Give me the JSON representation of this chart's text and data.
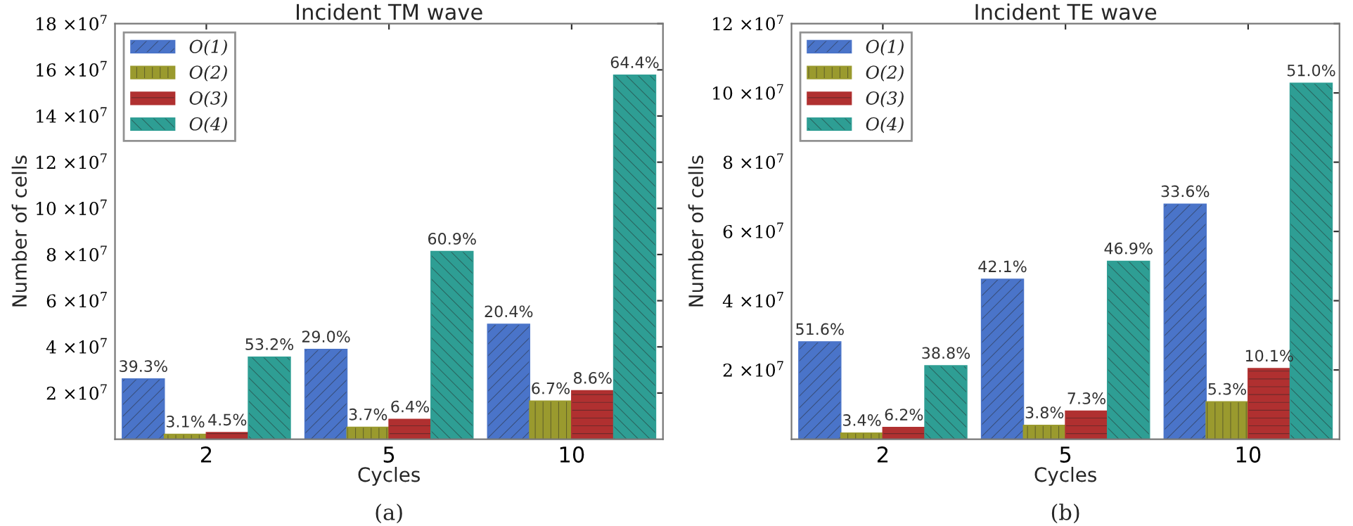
{
  "chart_data": [
    {
      "type": "bar",
      "title": "Incident TM wave",
      "xlabel": "Cycles",
      "ylabel": "Number of cells",
      "categories": [
        "2",
        "5",
        "10"
      ],
      "series": [
        {
          "name": "O(1)",
          "color": "#4a74c9",
          "values": [
            26100000,
            38900000,
            49800000
          ]
        },
        {
          "name": "O(2)",
          "color": "#9a9a2e",
          "values": [
            2100000,
            5200000,
            16500000
          ]
        },
        {
          "name": "O(3)",
          "color": "#b03030",
          "values": [
            2900000,
            8600000,
            21000000
          ]
        },
        {
          "name": "O(4)",
          "color": "#2e9e94",
          "values": [
            35600000,
            81300000,
            157700000
          ]
        }
      ],
      "ylim": [
        0,
        180000000
      ],
      "yticks": [
        {
          "value": 20000000,
          "label": "2 ×10$^{7}$"
        },
        {
          "value": 40000000,
          "label": "4 ×10$^{7}$"
        },
        {
          "value": 60000000,
          "label": "6 ×10$^{7}$"
        },
        {
          "value": 80000000,
          "label": "8 ×10$^{7}$"
        },
        {
          "value": 100000000,
          "label": "10 ×10$^{7}$"
        },
        {
          "value": 120000000,
          "label": "12 ×10$^{7}$"
        },
        {
          "value": 140000000,
          "label": "14 ×10$^{7}$"
        },
        {
          "value": 160000000,
          "label": "16 ×10$^{7}$"
        },
        {
          "value": 180000000,
          "label": "18 ×10$^{7}$"
        }
      ],
      "legend": "top left",
      "annotations": [
        "(a)",
        "39.3%",
        "3.1%",
        "4.5%",
        "53.2%",
        "29.0%",
        "3.7%",
        "6.4%",
        "60.9%",
        "20.4%",
        "6.7%",
        "8.6%",
        "64.4%"
      ]
    },
    {
      "type": "bar",
      "title": "Incident TE wave",
      "xlabel": "Cycles",
      "ylabel": "Number of cells",
      "categories": [
        "2",
        "5",
        "10"
      ],
      "series": [
        {
          "name": "O(1)",
          "color": "#4a74c9",
          "values": [
            28100000,
            46200000,
            67900000
          ]
        },
        {
          "name": "O(2)",
          "color": "#9a9a2e",
          "values": [
            1800000,
            4000000,
            10800000
          ]
        },
        {
          "name": "O(3)",
          "color": "#b03030",
          "values": [
            3400000,
            8100000,
            20400000
          ]
        },
        {
          "name": "O(4)",
          "color": "#2e9e94",
          "values": [
            21200000,
            51400000,
            102800000
          ]
        }
      ],
      "ylim": [
        0,
        120000000
      ],
      "yticks": [
        {
          "value": 20000000,
          "label": "2 ×10$^{7}$"
        },
        {
          "value": 40000000,
          "label": "4 ×10$^{7}$"
        },
        {
          "value": 60000000,
          "label": "6 ×10$^{7}$"
        },
        {
          "value": 80000000,
          "label": "8 ×10$^{7}$"
        },
        {
          "value": 100000000,
          "label": "10 ×10$^{7}$"
        },
        {
          "value": 120000000,
          "label": "12 ×10$^{7}$"
        }
      ],
      "legend": "top left",
      "annotations": [
        "(b)",
        "51.6%",
        "3.4%",
        "6.2%",
        "38.8%",
        "42.1%",
        "3.8%",
        "7.3%",
        "46.9%",
        "33.6%",
        "5.3%",
        "10.1%",
        "51.0%"
      ]
    }
  ]
}
